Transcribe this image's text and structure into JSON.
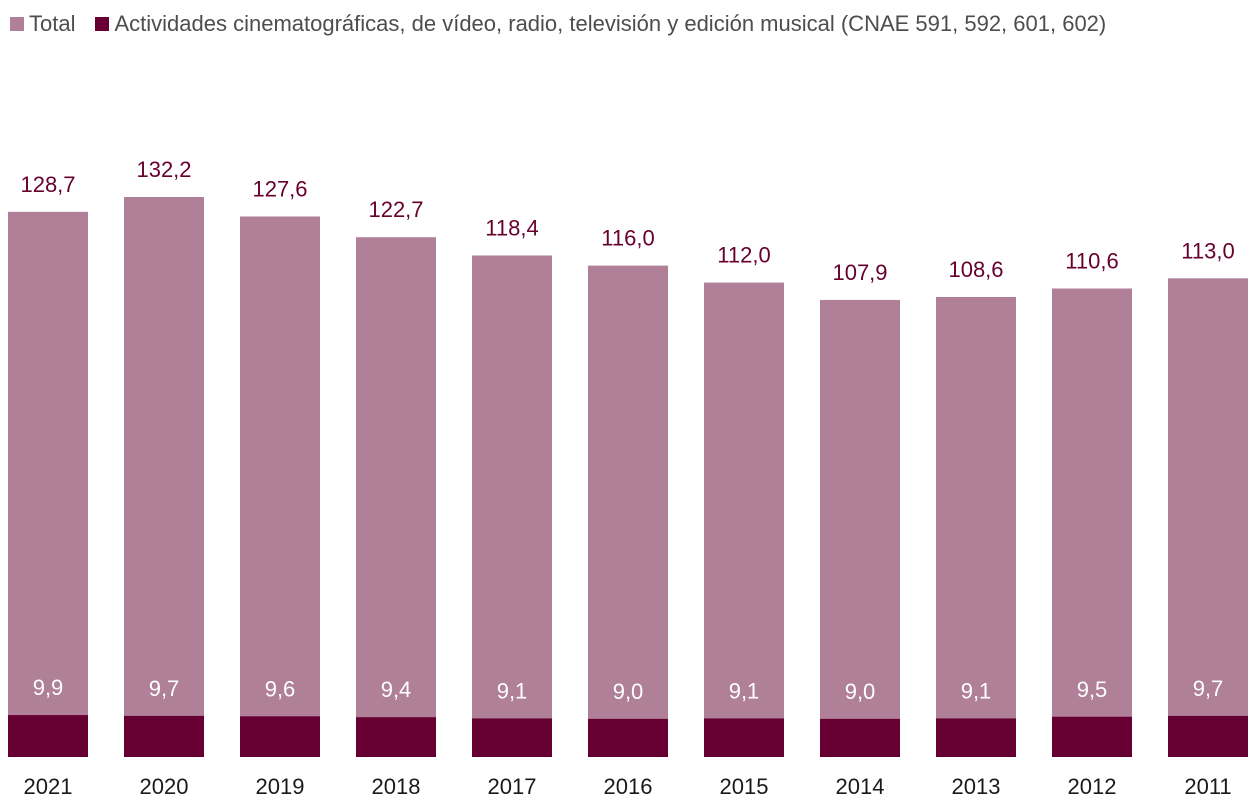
{
  "legend": {
    "total_label": "Total",
    "sub_label": "Actividades cinematográficas, de vídeo, radio, televisión y edición musical  (CNAE 591, 592, 601, 602)"
  },
  "colors": {
    "total": "#b08098",
    "sub": "#660033",
    "total_label": "#66002d",
    "sub_label": "#ffffff"
  },
  "chart_data": {
    "type": "bar",
    "categories": [
      "2021",
      "2020",
      "2019",
      "2018",
      "2017",
      "2016",
      "2015",
      "2014",
      "2013",
      "2012",
      "2011"
    ],
    "series": [
      {
        "name": "Total",
        "values": [
          128.7,
          132.2,
          127.6,
          122.7,
          118.4,
          116.0,
          112.0,
          107.9,
          108.6,
          110.6,
          113.0
        ]
      },
      {
        "name": "Actividades cinematográficas, de vídeo, radio, televisión y edición musical  (CNAE 591, 592, 601, 602)",
        "values": [
          9.9,
          9.7,
          9.6,
          9.4,
          9.1,
          9.0,
          9.1,
          9.0,
          9.1,
          9.5,
          9.7
        ]
      }
    ],
    "value_labels_total": [
      "128,7",
      "132,2",
      "127,6",
      "122,7",
      "118,4",
      "116,0",
      "112,0",
      "107,9",
      "108,6",
      "110,6",
      "113,0"
    ],
    "value_labels_sub": [
      "9,9",
      "9,7",
      "9,6",
      "9,4",
      "9,1",
      "9,0",
      "9,1",
      "9,0",
      "9,1",
      "9,5",
      "9,7"
    ],
    "overlap": true,
    "ylim": [
      0,
      132.2
    ],
    "grid": false,
    "legend_position": "top-left"
  }
}
